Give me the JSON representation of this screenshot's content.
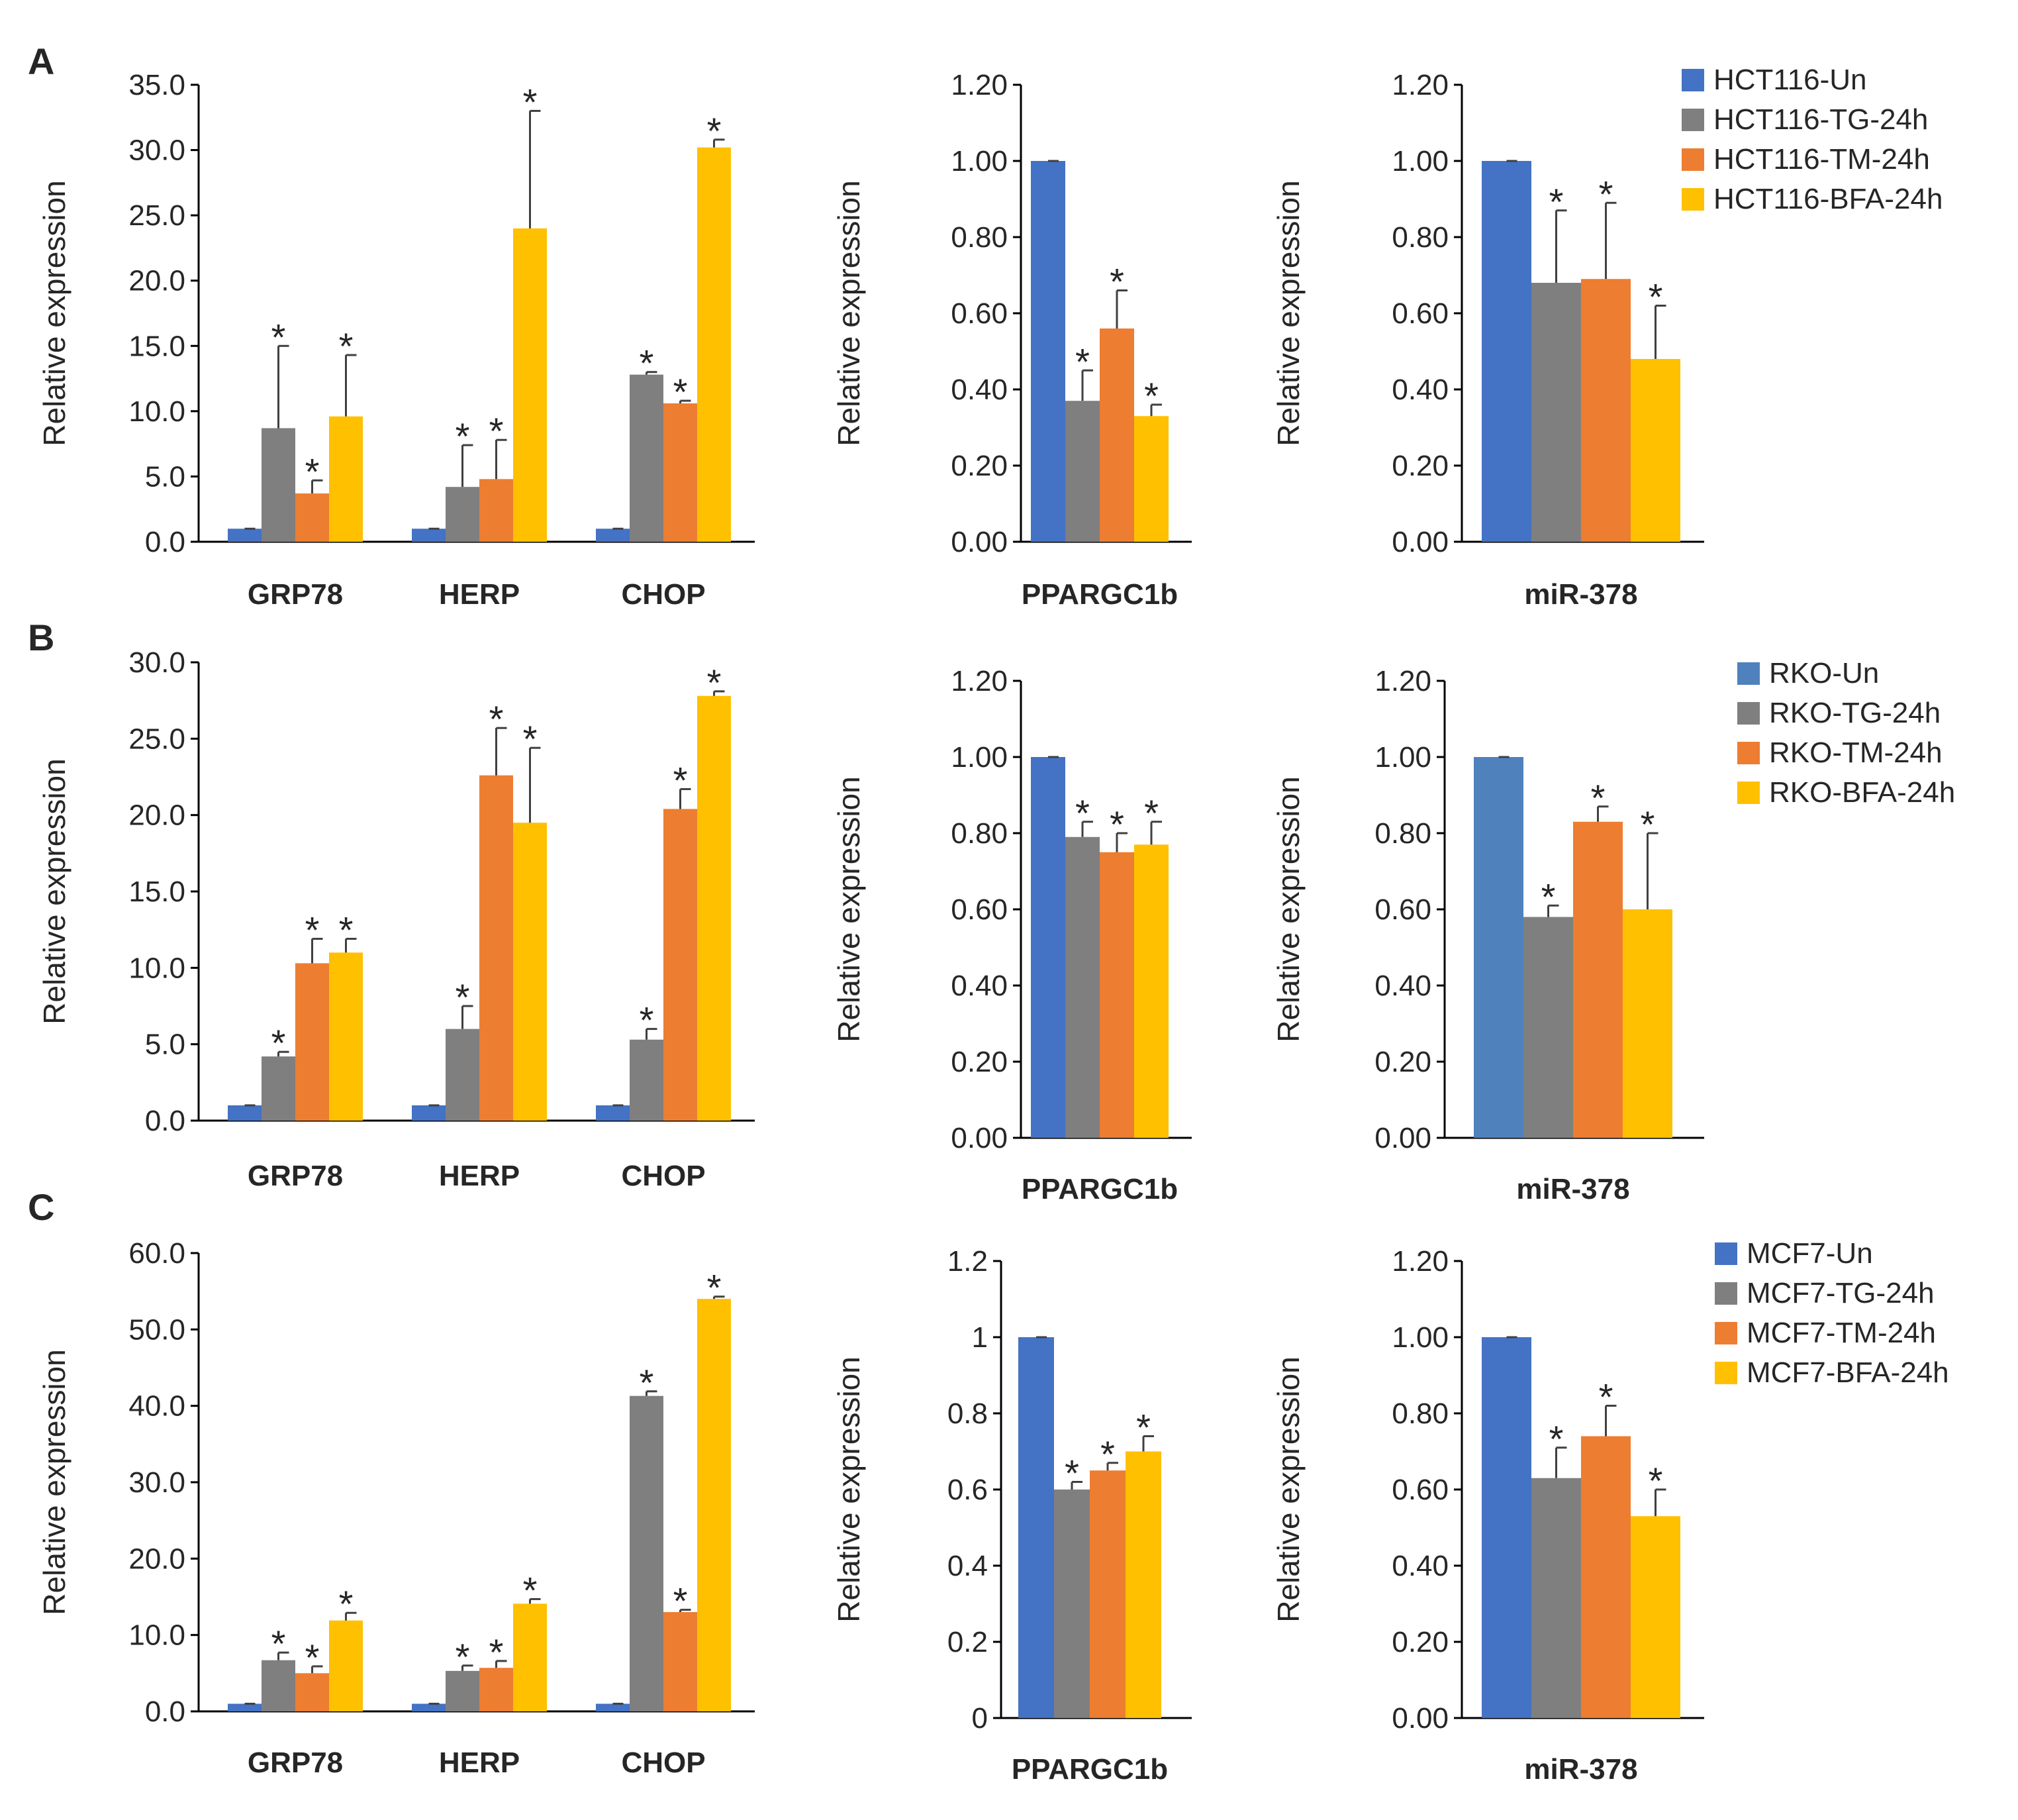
{
  "panels": [
    {
      "id": "A",
      "label": "A"
    },
    {
      "id": "B",
      "label": "B"
    },
    {
      "id": "C",
      "label": "C"
    }
  ],
  "legends": [
    {
      "panel": "A",
      "entries": [
        {
          "label": "HCT116-Un",
          "color": "#4472C4"
        },
        {
          "label": "HCT116-TG-24h",
          "color": "#7F7F7F"
        },
        {
          "label": "HCT116-TM-24h",
          "color": "#ED7D31"
        },
        {
          "label": "HCT116-BFA-24h",
          "color": "#FFC000"
        }
      ]
    },
    {
      "panel": "B",
      "entries": [
        {
          "label": "RKO-Un",
          "color": "#4F81BD"
        },
        {
          "label": "RKO-TG-24h",
          "color": "#7F7F7F"
        },
        {
          "label": "RKO-TM-24h",
          "color": "#ED7D31"
        },
        {
          "label": "RKO-BFA-24h",
          "color": "#FFC000"
        }
      ]
    },
    {
      "panel": "C",
      "entries": [
        {
          "label": "MCF7-Un",
          "color": "#4472C4"
        },
        {
          "label": "MCF7-TG-24h",
          "color": "#7F7F7F"
        },
        {
          "label": "MCF7-TM-24h",
          "color": "#ED7D31"
        },
        {
          "label": "MCF7-BFA-24h",
          "color": "#FFC000"
        }
      ]
    }
  ],
  "chart_data": [
    {
      "id": "A-ER-stress",
      "panel": "A",
      "type": "bar",
      "ylabel": "Relative expression",
      "categories": [
        "GRP78",
        "HERP",
        "CHOP"
      ],
      "ylim": [
        0,
        35
      ],
      "yticks": [
        "0.0",
        "5.0",
        "10.0",
        "15.0",
        "20.0",
        "25.0",
        "30.0",
        "35.0"
      ],
      "series": [
        {
          "name": "HCT116-Un",
          "color": "#4472C4",
          "values": [
            1.0,
            1.0,
            1.0
          ],
          "errors": [
            0,
            0,
            0
          ],
          "sig": [
            false,
            false,
            false
          ]
        },
        {
          "name": "HCT116-TG-24h",
          "color": "#7F7F7F",
          "values": [
            8.7,
            4.2,
            12.8
          ],
          "errors": [
            6.3,
            3.2,
            0.2
          ],
          "sig": [
            true,
            true,
            true
          ]
        },
        {
          "name": "HCT116-TM-24h",
          "color": "#ED7D31",
          "values": [
            3.7,
            4.8,
            10.6
          ],
          "errors": [
            1.0,
            3.0,
            0.2
          ],
          "sig": [
            true,
            true,
            true
          ]
        },
        {
          "name": "HCT116-BFA-24h",
          "color": "#FFC000",
          "values": [
            9.6,
            24.0,
            30.2
          ],
          "errors": [
            4.7,
            9.0,
            0.6
          ],
          "sig": [
            true,
            true,
            true
          ]
        }
      ]
    },
    {
      "id": "A-PPARGC1b",
      "panel": "A",
      "type": "bar",
      "ylabel": "Relative expression",
      "categories": [
        "PPARGC1b"
      ],
      "ylim": [
        0,
        1.2
      ],
      "yticks": [
        "0.00",
        "0.20",
        "0.40",
        "0.60",
        "0.80",
        "1.00",
        "1.20"
      ],
      "series": [
        {
          "name": "HCT116-Un",
          "color": "#4472C4",
          "values": [
            1.0
          ],
          "errors": [
            0
          ],
          "sig": [
            false
          ]
        },
        {
          "name": "HCT116-TG-24h",
          "color": "#7F7F7F",
          "values": [
            0.37
          ],
          "errors": [
            0.08
          ],
          "sig": [
            true
          ]
        },
        {
          "name": "HCT116-TM-24h",
          "color": "#ED7D31",
          "values": [
            0.56
          ],
          "errors": [
            0.1
          ],
          "sig": [
            true
          ]
        },
        {
          "name": "HCT116-BFA-24h",
          "color": "#FFC000",
          "values": [
            0.33
          ],
          "errors": [
            0.03
          ],
          "sig": [
            true
          ]
        }
      ]
    },
    {
      "id": "A-miR-378",
      "panel": "A",
      "type": "bar",
      "ylabel": "Relative expression",
      "categories": [
        "miR-378"
      ],
      "ylim": [
        0,
        1.2
      ],
      "yticks": [
        "0.00",
        "0.20",
        "0.40",
        "0.60",
        "0.80",
        "1.00",
        "1.20"
      ],
      "series": [
        {
          "name": "HCT116-Un",
          "color": "#4472C4",
          "values": [
            1.0
          ],
          "errors": [
            0
          ],
          "sig": [
            false
          ]
        },
        {
          "name": "HCT116-TG-24h",
          "color": "#7F7F7F",
          "values": [
            0.68
          ],
          "errors": [
            0.19
          ],
          "sig": [
            true
          ]
        },
        {
          "name": "HCT116-TM-24h",
          "color": "#ED7D31",
          "values": [
            0.69
          ],
          "errors": [
            0.2
          ],
          "sig": [
            true
          ]
        },
        {
          "name": "HCT116-BFA-24h",
          "color": "#FFC000",
          "values": [
            0.48
          ],
          "errors": [
            0.14
          ],
          "sig": [
            true
          ]
        }
      ]
    },
    {
      "id": "B-ER-stress",
      "panel": "B",
      "type": "bar",
      "ylabel": "Relative expression",
      "categories": [
        "GRP78",
        "HERP",
        "CHOP"
      ],
      "ylim": [
        0,
        30
      ],
      "yticks": [
        "0.0",
        "5.0",
        "10.0",
        "15.0",
        "20.0",
        "25.0",
        "30.0"
      ],
      "series": [
        {
          "name": "RKO-Un",
          "color": "#4472C4",
          "values": [
            1.0,
            1.0,
            1.0
          ],
          "errors": [
            0,
            0,
            0
          ],
          "sig": [
            false,
            false,
            false
          ]
        },
        {
          "name": "RKO-TG-24h",
          "color": "#7F7F7F",
          "values": [
            4.2,
            6.0,
            5.3
          ],
          "errors": [
            0.3,
            1.5,
            0.7
          ],
          "sig": [
            true,
            true,
            true
          ]
        },
        {
          "name": "RKO-TM-24h",
          "color": "#ED7D31",
          "values": [
            10.3,
            22.6,
            20.4
          ],
          "errors": [
            1.6,
            3.1,
            1.3
          ],
          "sig": [
            true,
            true,
            true
          ]
        },
        {
          "name": "RKO-BFA-24h",
          "color": "#FFC000",
          "values": [
            11.0,
            19.5,
            27.8
          ],
          "errors": [
            0.9,
            4.9,
            0.3
          ],
          "sig": [
            true,
            true,
            true
          ]
        }
      ]
    },
    {
      "id": "B-PPARGC1b",
      "panel": "B",
      "type": "bar",
      "ylabel": "Relative expression",
      "categories": [
        "PPARGC1b"
      ],
      "ylim": [
        0,
        1.2
      ],
      "yticks": [
        "0.00",
        "0.20",
        "0.40",
        "0.60",
        "0.80",
        "1.00",
        "1.20"
      ],
      "series": [
        {
          "name": "RKO-Un",
          "color": "#4472C4",
          "values": [
            1.0
          ],
          "errors": [
            0
          ],
          "sig": [
            false
          ]
        },
        {
          "name": "RKO-TG-24h",
          "color": "#7F7F7F",
          "values": [
            0.79
          ],
          "errors": [
            0.04
          ],
          "sig": [
            true
          ]
        },
        {
          "name": "RKO-TM-24h",
          "color": "#ED7D31",
          "values": [
            0.75
          ],
          "errors": [
            0.05
          ],
          "sig": [
            true
          ]
        },
        {
          "name": "RKO-BFA-24h",
          "color": "#FFC000",
          "values": [
            0.77
          ],
          "errors": [
            0.06
          ],
          "sig": [
            true
          ]
        }
      ]
    },
    {
      "id": "B-miR-378",
      "panel": "B",
      "type": "bar",
      "ylabel": "Relative expression",
      "categories": [
        "miR-378"
      ],
      "ylim": [
        0,
        1.2
      ],
      "yticks": [
        "0.00",
        "0.20",
        "0.40",
        "0.60",
        "0.80",
        "1.00",
        "1.20"
      ],
      "series": [
        {
          "name": "RKO-Un",
          "color": "#4F81BD",
          "values": [
            1.0
          ],
          "errors": [
            0
          ],
          "sig": [
            false
          ]
        },
        {
          "name": "RKO-TG-24h",
          "color": "#7F7F7F",
          "values": [
            0.58
          ],
          "errors": [
            0.03
          ],
          "sig": [
            true
          ]
        },
        {
          "name": "RKO-TM-24h",
          "color": "#ED7D31",
          "values": [
            0.83
          ],
          "errors": [
            0.04
          ],
          "sig": [
            true
          ]
        },
        {
          "name": "RKO-BFA-24h",
          "color": "#FFC000",
          "values": [
            0.6
          ],
          "errors": [
            0.2
          ],
          "sig": [
            true
          ]
        }
      ]
    },
    {
      "id": "C-ER-stress",
      "panel": "C",
      "type": "bar",
      "ylabel": "Relative expression",
      "categories": [
        "GRP78",
        "HERP",
        "CHOP"
      ],
      "ylim": [
        0,
        60
      ],
      "yticks": [
        "0.0",
        "10.0",
        "20.0",
        "30.0",
        "40.0",
        "50.0",
        "60.0"
      ],
      "series": [
        {
          "name": "MCF7-Un",
          "color": "#4472C4",
          "values": [
            1.0,
            1.0,
            1.0
          ],
          "errors": [
            0,
            0,
            0
          ],
          "sig": [
            false,
            false,
            false
          ]
        },
        {
          "name": "MCF7-TG-24h",
          "color": "#7F7F7F",
          "values": [
            6.7,
            5.3,
            41.3
          ],
          "errors": [
            1.0,
            0.7,
            0.6
          ],
          "sig": [
            true,
            true,
            true
          ]
        },
        {
          "name": "MCF7-TM-24h",
          "color": "#ED7D31",
          "values": [
            5.0,
            5.7,
            13.0
          ],
          "errors": [
            0.9,
            0.9,
            0.3
          ],
          "sig": [
            true,
            true,
            true
          ]
        },
        {
          "name": "MCF7-BFA-24h",
          "color": "#FFC000",
          "values": [
            11.9,
            14.1,
            54.0
          ],
          "errors": [
            1.0,
            0.6,
            0.3
          ],
          "sig": [
            true,
            true,
            true
          ]
        }
      ]
    },
    {
      "id": "C-PPARGC1b",
      "panel": "C",
      "type": "bar",
      "ylabel": "Relative expression",
      "categories": [
        "PPARGC1b"
      ],
      "ylim": [
        0,
        1.2
      ],
      "yticks": [
        "0",
        "0.2",
        "0.4",
        "0.6",
        "0.8",
        "1",
        "1.2"
      ],
      "series": [
        {
          "name": "MCF7-Un",
          "color": "#4472C4",
          "values": [
            1.0
          ],
          "errors": [
            0
          ],
          "sig": [
            false
          ]
        },
        {
          "name": "MCF7-TG-24h",
          "color": "#7F7F7F",
          "values": [
            0.6
          ],
          "errors": [
            0.02
          ],
          "sig": [
            true
          ]
        },
        {
          "name": "MCF7-TM-24h",
          "color": "#ED7D31",
          "values": [
            0.65
          ],
          "errors": [
            0.02
          ],
          "sig": [
            true
          ]
        },
        {
          "name": "MCF7-BFA-24h",
          "color": "#FFC000",
          "values": [
            0.7
          ],
          "errors": [
            0.04
          ],
          "sig": [
            true
          ]
        }
      ]
    },
    {
      "id": "C-miR-378",
      "panel": "C",
      "type": "bar",
      "ylabel": "Relative expression",
      "categories": [
        "miR-378"
      ],
      "ylim": [
        0,
        1.2
      ],
      "yticks": [
        "0.00",
        "0.20",
        "0.40",
        "0.60",
        "0.80",
        "1.00",
        "1.20"
      ],
      "series": [
        {
          "name": "MCF7-Un",
          "color": "#4472C4",
          "values": [
            1.0
          ],
          "errors": [
            0
          ],
          "sig": [
            false
          ]
        },
        {
          "name": "MCF7-TG-24h",
          "color": "#7F7F7F",
          "values": [
            0.63
          ],
          "errors": [
            0.08
          ],
          "sig": [
            true
          ]
        },
        {
          "name": "MCF7-TM-24h",
          "color": "#ED7D31",
          "values": [
            0.74
          ],
          "errors": [
            0.08
          ],
          "sig": [
            true
          ]
        },
        {
          "name": "MCF7-BFA-24h",
          "color": "#FFC000",
          "values": [
            0.53
          ],
          "errors": [
            0.07
          ],
          "sig": [
            true
          ]
        }
      ]
    }
  ]
}
